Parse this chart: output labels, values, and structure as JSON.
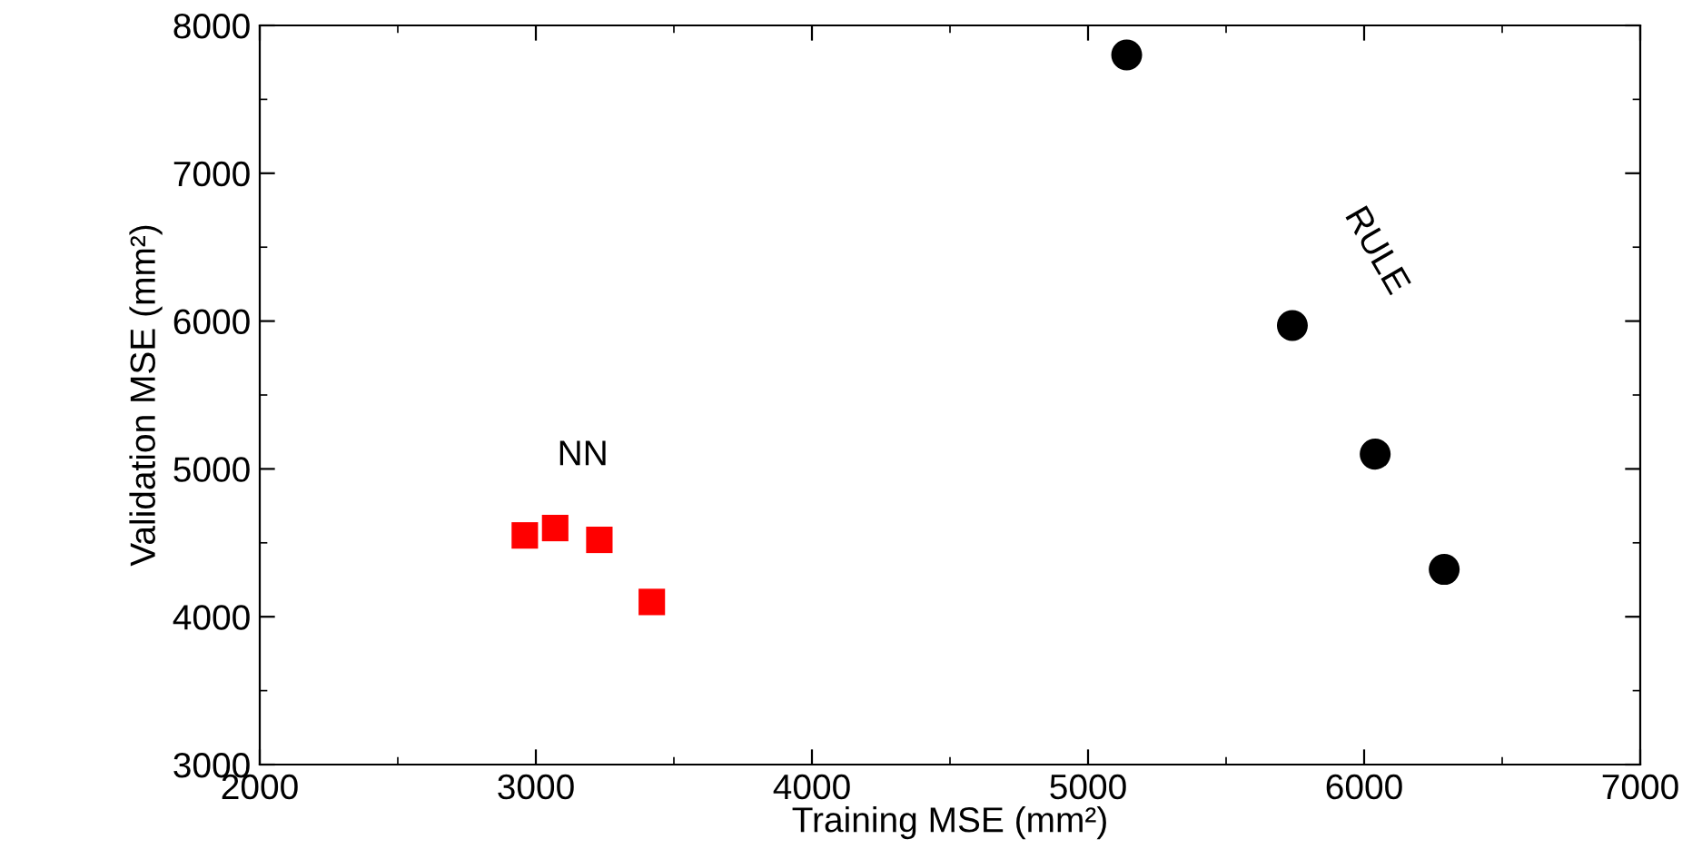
{
  "chart_data": {
    "type": "scatter",
    "xlabel": "Training MSE (mm²)",
    "ylabel": "Validation MSE (mm²)",
    "xlim": [
      2000,
      7000
    ],
    "xticks": [
      2000,
      3000,
      4000,
      5000,
      6000,
      7000
    ],
    "ylim": [
      3000,
      8000
    ],
    "yticks": [
      3000,
      4000,
      5000,
      6000,
      7000,
      8000
    ],
    "grid": false,
    "legend": false,
    "series": [
      {
        "name": "NN",
        "color": "#ff0000",
        "marker": "square",
        "x": [
          2960,
          3070,
          3230,
          3420
        ],
        "values": [
          4550,
          4600,
          4520,
          4100
        ]
      },
      {
        "name": "RULE",
        "color": "#000000",
        "marker": "circle",
        "x": [
          5140,
          5740,
          6040,
          6290
        ],
        "values": [
          7800,
          5970,
          5100,
          4320
        ]
      }
    ]
  }
}
